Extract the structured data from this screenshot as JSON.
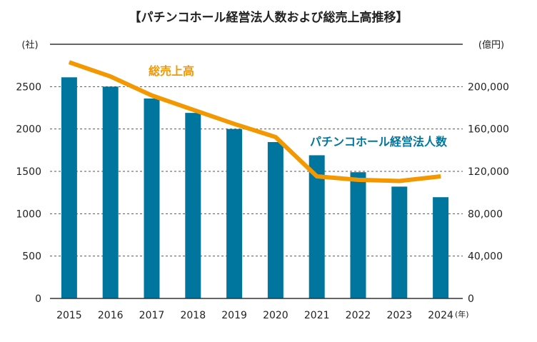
{
  "chart_data": {
    "type": "bar+line",
    "title": "【パチンコホール経営法人数および総売上高推移】",
    "left_unit": "(社)",
    "right_unit": "(億円)",
    "x_unit": "(年)",
    "categories": [
      "2015",
      "2016",
      "2017",
      "2018",
      "2019",
      "2020",
      "2021",
      "2022",
      "2023",
      "2024"
    ],
    "left_ticks": [
      "0",
      "500",
      "1000",
      "1500",
      "2000",
      "2500"
    ],
    "right_ticks": [
      "0",
      "40,000",
      "80,000",
      "120,000",
      "160,000",
      "200,000"
    ],
    "left_ylim": [
      0,
      3000
    ],
    "right_ylim": [
      0,
      240000
    ],
    "grid": true,
    "series": [
      {
        "name": "パチンコホール経営法人数",
        "type": "bar",
        "axis": "left",
        "color": "#00769e",
        "values": [
          2610,
          2500,
          2360,
          2190,
          2000,
          1846,
          1690,
          1490,
          1320,
          1195
        ]
      },
      {
        "name": "総売上高",
        "type": "line",
        "axis": "right",
        "color": "#f39800",
        "values": [
          223000,
          209600,
          191700,
          178200,
          164800,
          152400,
          115300,
          112000,
          110900,
          115300
        ]
      }
    ]
  }
}
